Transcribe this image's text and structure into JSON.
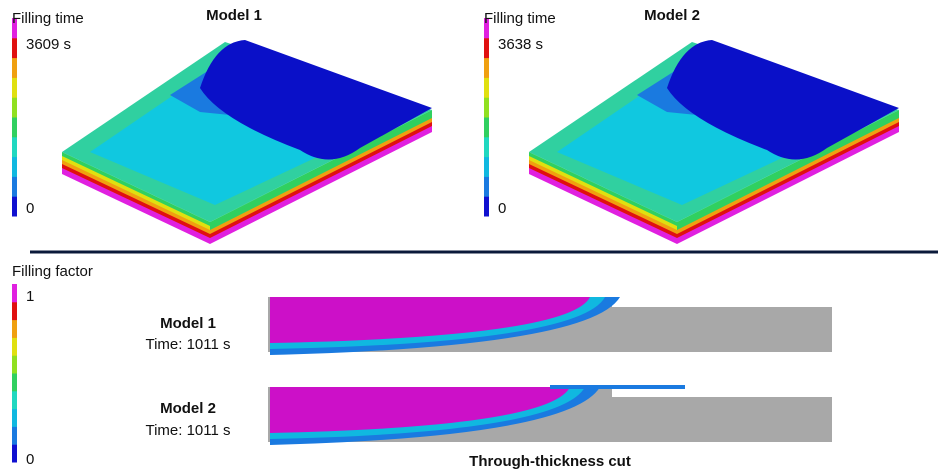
{
  "top": {
    "panels": [
      {
        "legend_title": "Filling time",
        "title": "Model 1",
        "max_label": "3609 s",
        "min_label": "0"
      },
      {
        "legend_title": "Filling time",
        "title": "Model 2",
        "max_label": "3638 s",
        "min_label": "0"
      }
    ]
  },
  "bottom": {
    "legend_title": "Filling factor",
    "max_label": "1",
    "min_label": "0",
    "rows": [
      {
        "title": "Model 1",
        "time": "Time: 1011 s"
      },
      {
        "title": "Model 2",
        "time": "Time: 1011 s"
      }
    ],
    "caption": "Through-thickness cut"
  }
}
